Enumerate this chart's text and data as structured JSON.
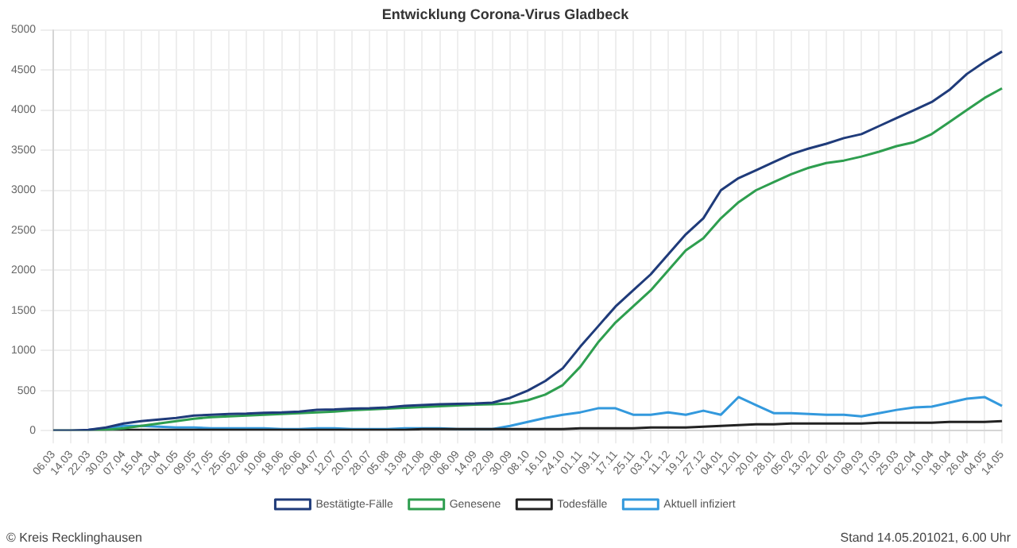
{
  "chart_data": {
    "type": "line",
    "title": "Entwicklung Corona-Virus Gladbeck",
    "categories": [
      "06.03",
      "14.03",
      "22.03",
      "30.03",
      "07.04",
      "15.04",
      "23.04",
      "01.05",
      "09.05",
      "17.05",
      "25.05",
      "02.06",
      "10.06",
      "18.06",
      "26.06",
      "04.07",
      "12.07",
      "20.07",
      "28.07",
      "05.08",
      "13.08",
      "21.08",
      "29.08",
      "06.09",
      "14.09",
      "22.09",
      "30.09",
      "08.10",
      "16.10",
      "24.10",
      "01.11",
      "09.11",
      "17.11",
      "25.11",
      "03.12",
      "11.12",
      "19.12",
      "27.12",
      "04.01",
      "12.01",
      "20.01",
      "28.01",
      "05.02",
      "13.02",
      "21.02",
      "01.03",
      "09.03",
      "17.03",
      "25.03",
      "02.04",
      "10.04",
      "18.04",
      "26.04",
      "04.05",
      "14.05"
    ],
    "series": [
      {
        "name": "Bestätigte-Fälle",
        "color": "#1f3b7a",
        "values": [
          0,
          0,
          10,
          40,
          90,
          120,
          140,
          160,
          190,
          200,
          210,
          215,
          225,
          230,
          240,
          260,
          265,
          275,
          280,
          290,
          310,
          320,
          330,
          335,
          340,
          350,
          410,
          500,
          620,
          780,
          1050,
          1300,
          1550,
          1750,
          1950,
          2200,
          2450,
          2650,
          3000,
          3150,
          3250,
          3350,
          3450,
          3520,
          3580,
          3650,
          3700,
          3800,
          3900,
          4000,
          4100,
          4250,
          4450,
          4600,
          4730
        ]
      },
      {
        "name": "Genesene",
        "color": "#2e9e4f",
        "values": [
          0,
          0,
          0,
          10,
          30,
          60,
          90,
          120,
          150,
          170,
          180,
          190,
          200,
          210,
          220,
          230,
          240,
          255,
          265,
          275,
          285,
          295,
          305,
          315,
          325,
          330,
          340,
          380,
          450,
          570,
          800,
          1100,
          1350,
          1550,
          1750,
          2000,
          2250,
          2400,
          2650,
          2850,
          3000,
          3100,
          3200,
          3280,
          3340,
          3370,
          3420,
          3480,
          3550,
          3600,
          3700,
          3850,
          4000,
          4150,
          4270
        ]
      },
      {
        "name": "Todesfälle",
        "color": "#222222",
        "values": [
          0,
          0,
          0,
          0,
          10,
          10,
          10,
          10,
          10,
          10,
          10,
          10,
          10,
          10,
          10,
          10,
          10,
          10,
          10,
          10,
          10,
          20,
          20,
          20,
          20,
          20,
          20,
          20,
          20,
          20,
          30,
          30,
          30,
          30,
          40,
          40,
          40,
          50,
          60,
          70,
          80,
          80,
          90,
          90,
          90,
          90,
          90,
          100,
          100,
          100,
          100,
          110,
          110,
          110,
          120
        ]
      },
      {
        "name": "Aktuell infiziert",
        "color": "#3399dd",
        "values": [
          null,
          null,
          10,
          30,
          60,
          60,
          50,
          40,
          40,
          30,
          30,
          30,
          30,
          20,
          20,
          30,
          30,
          20,
          20,
          20,
          30,
          30,
          30,
          20,
          20,
          20,
          60,
          110,
          160,
          200,
          230,
          280,
          280,
          200,
          200,
          230,
          200,
          250,
          200,
          420,
          320,
          220,
          220,
          210,
          200,
          200,
          180,
          220,
          260,
          290,
          300,
          350,
          400,
          420,
          310
        ]
      }
    ],
    "ylim": [
      0,
      5000
    ],
    "yticks": [
      0,
      500,
      1000,
      1500,
      2000,
      2500,
      3000,
      3500,
      4000,
      4500,
      5000
    ],
    "grid": true,
    "legend": "bottom",
    "marker": "none",
    "line_style": "solid",
    "annotations": [
      "© Kreis Recklinghausen",
      "Stand 14.05.201021, 6.00 Uhr"
    ]
  }
}
